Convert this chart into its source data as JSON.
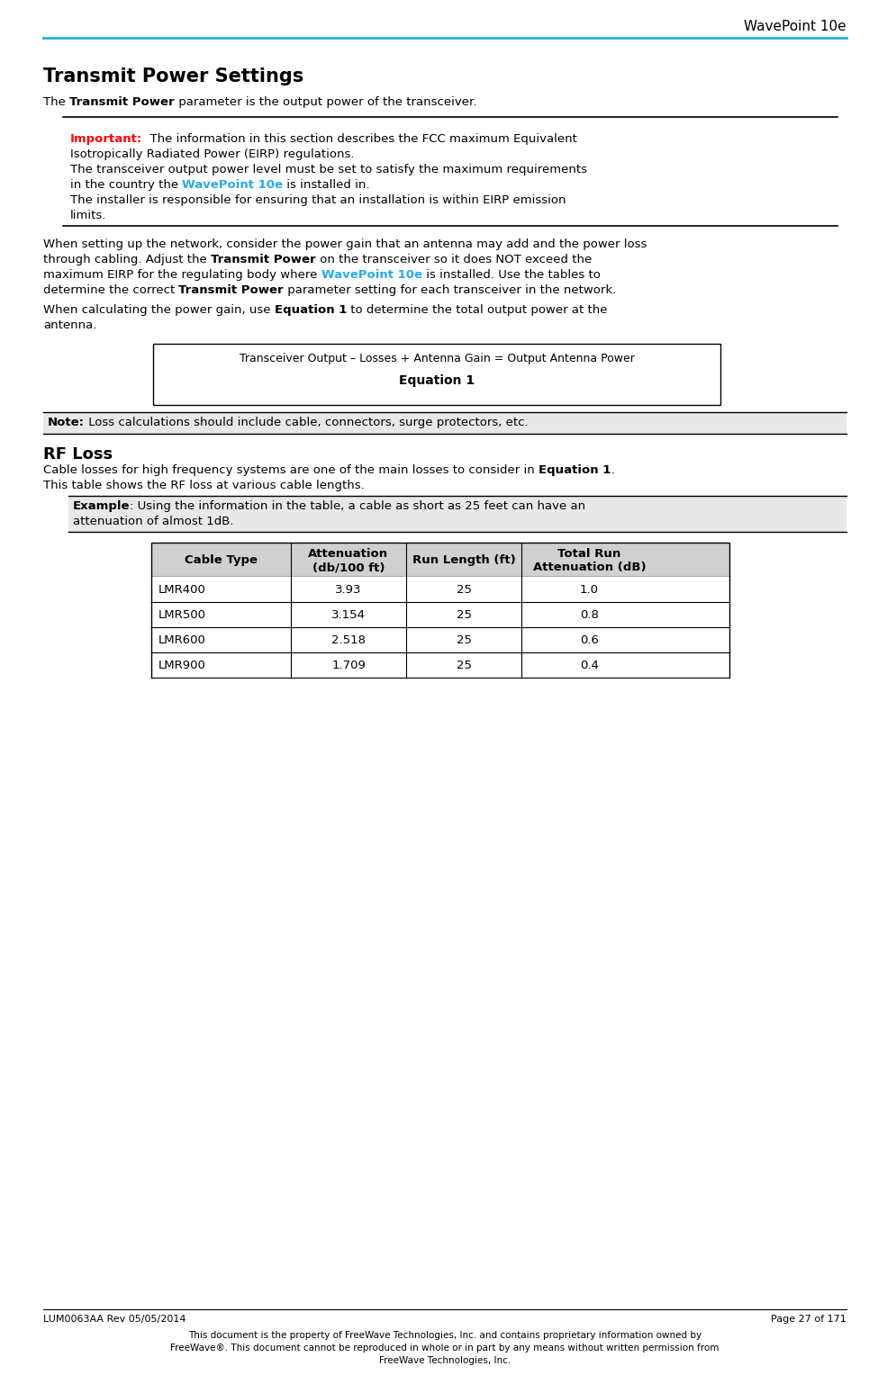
{
  "header_text": "WavePoint 10e",
  "header_line_color": "#29ABE2",
  "title": "Transmit Power Settings",
  "bg_color": "#FFFFFF",
  "text_color": "#000000",
  "wavepoint_color": "#29ABE2",
  "red_color": "#FF0000",
  "footer_left": "LUM0063AA Rev 05/05/2014",
  "footer_right": "Page 27 of 171",
  "footer_note1": "This document is the property of FreeWave Technologies, Inc. and contains proprietary information owned by",
  "footer_note2": "FreeWave®. This document cannot be reproduced in whole or in part by any means without written permission from",
  "footer_note3": "FreeWave Technologies, Inc.",
  "table_headers": [
    "Cable Type",
    "Attenuation\n(db/100 ft)",
    "Run Length (ft)",
    "Total Run\nAttenuation (dB)"
  ],
  "table_rows": [
    [
      "LMR400",
      "3.93",
      "25",
      "1.0"
    ],
    [
      "LMR500",
      "3.154",
      "25",
      "0.8"
    ],
    [
      "LMR600",
      "2.518",
      "25",
      "0.6"
    ],
    [
      "LMR900",
      "1.709",
      "25",
      "0.4"
    ]
  ],
  "table_header_bg": "#D0D0D0"
}
